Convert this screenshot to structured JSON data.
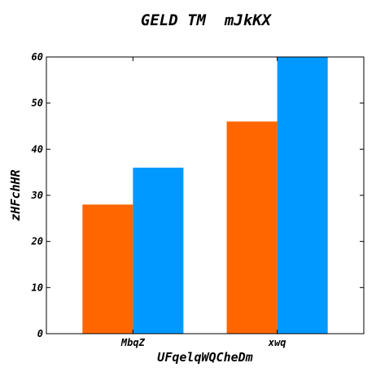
{
  "chart_data": {
    "type": "bar",
    "title": "GELD TM  mJkKX",
    "xlabel": "UFqelqWQCheDm",
    "ylabel": "zHFchHR",
    "categories": [
      "MbqZ",
      "xwq"
    ],
    "series": [
      {
        "values": [
          28,
          46
        ],
        "color": "#ff6600"
      },
      {
        "values": [
          36,
          60
        ],
        "color": "#0099ff"
      }
    ],
    "ylim": [
      0,
      60
    ],
    "yticks": [
      0,
      10,
      20,
      30,
      40,
      50,
      60
    ],
    "grid": false,
    "legend": false
  }
}
